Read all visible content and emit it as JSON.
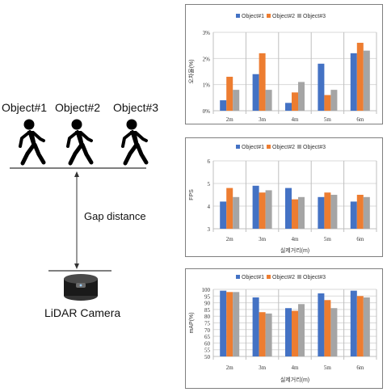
{
  "diagram": {
    "objects": [
      "Object#1",
      "Object#2",
      "Object#3"
    ],
    "gap_label": "Gap distance",
    "camera_label": "LiDAR Camera"
  },
  "colors": {
    "series1": "#4472C4",
    "series2": "#ED7D31",
    "series3": "#A5A5A5",
    "grid": "#d9d9d9",
    "axis": "#bfbfbf"
  },
  "chart_data": [
    {
      "type": "bar",
      "categories": [
        "2m",
        "3m",
        "4m",
        "5m",
        "6m"
      ],
      "series": [
        {
          "name": "Object#1",
          "values": [
            0.4,
            1.4,
            0.3,
            1.8,
            2.2
          ]
        },
        {
          "name": "Object#2",
          "values": [
            1.3,
            2.2,
            0.7,
            0.6,
            2.6
          ]
        },
        {
          "name": "Object#3",
          "values": [
            0.8,
            0.8,
            1.1,
            0.8,
            2.3
          ]
        }
      ],
      "yticks": [
        "0%",
        "1%",
        "2%",
        "3%"
      ],
      "ylim": [
        0,
        3
      ],
      "ylabel": "오차율(%)",
      "xlabel": "",
      "legend": "top",
      "grid": true
    },
    {
      "type": "bar",
      "categories": [
        "2m",
        "3m",
        "4m",
        "5m",
        "6m"
      ],
      "series": [
        {
          "name": "Object#1",
          "values": [
            4.2,
            4.9,
            4.8,
            4.4,
            4.2
          ]
        },
        {
          "name": "Object#2",
          "values": [
            4.8,
            4.6,
            4.3,
            4.6,
            4.5
          ]
        },
        {
          "name": "Object#3",
          "values": [
            4.4,
            4.7,
            4.4,
            4.5,
            4.4
          ]
        }
      ],
      "yticks": [
        "3",
        "4",
        "5",
        "6"
      ],
      "ylim": [
        3,
        6
      ],
      "ylabel": "FPS",
      "xlabel": "실제거리(m)",
      "legend": "top",
      "grid": true
    },
    {
      "type": "bar",
      "categories": [
        "2m",
        "3m",
        "4m",
        "5m",
        "6m"
      ],
      "series": [
        {
          "name": "Object#1",
          "values": [
            99,
            94,
            86,
            97,
            99
          ]
        },
        {
          "name": "Object#2",
          "values": [
            98,
            83,
            84,
            92,
            95
          ]
        },
        {
          "name": "Object#3",
          "values": [
            98,
            82,
            89,
            86,
            94
          ]
        }
      ],
      "yticks": [
        "50",
        "55",
        "60",
        "65",
        "70",
        "75",
        "80",
        "85",
        "90",
        "95",
        "100"
      ],
      "ylim": [
        50,
        100
      ],
      "ylabel": "mAP(%)",
      "xlabel": "실제거리(m)",
      "legend": "top",
      "grid": true
    }
  ]
}
